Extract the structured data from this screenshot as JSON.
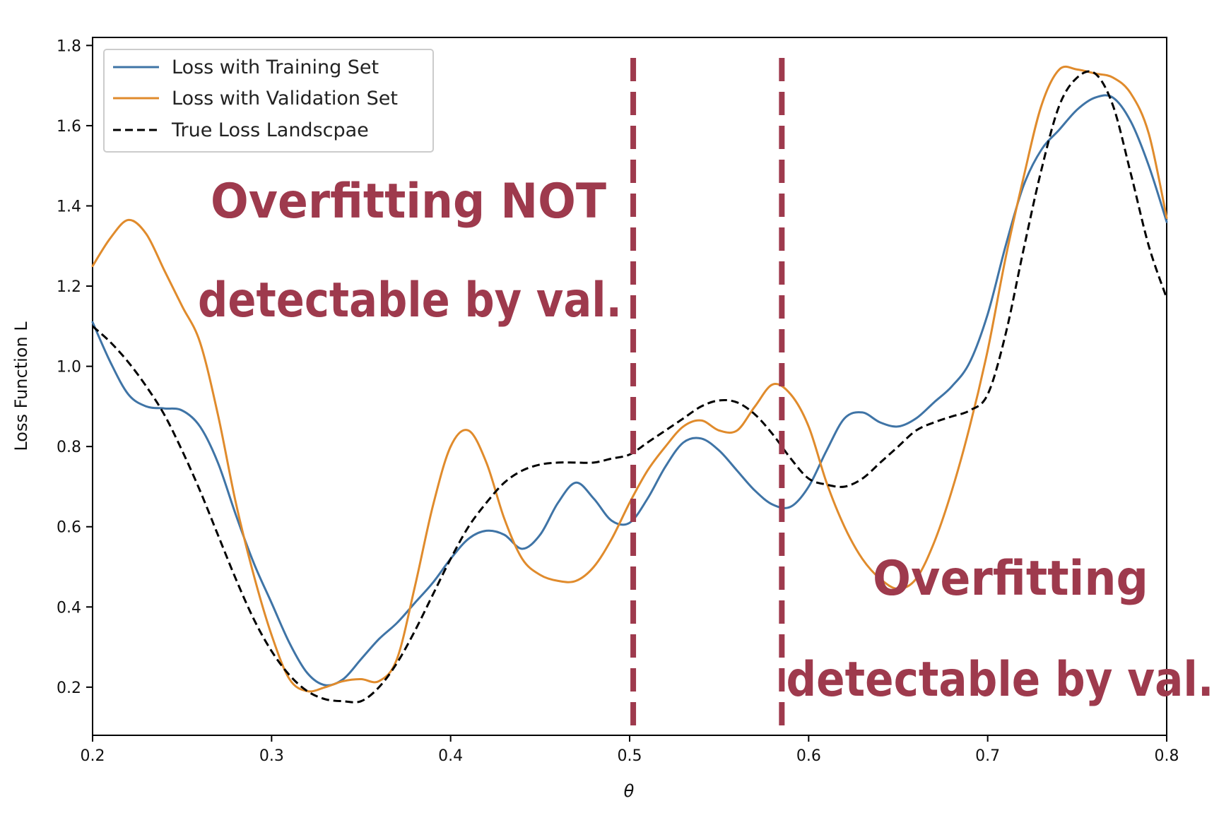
{
  "chart_data": {
    "type": "line",
    "xlabel": "θ",
    "ylabel": "Loss Function L",
    "xlim": [
      0.2,
      0.8
    ],
    "ylim": [
      0.08,
      1.82
    ],
    "xticks": [
      "0.2",
      "0.3",
      "0.4",
      "0.5",
      "0.6",
      "0.7",
      "0.8"
    ],
    "yticks": [
      "0.2",
      "0.4",
      "0.6",
      "0.8",
      "1.0",
      "1.2",
      "1.4",
      "1.6",
      "1.8"
    ],
    "grid": false,
    "legend_position": "top-left",
    "series": [
      {
        "name": "Loss with Training Set",
        "color": "#3f74a6",
        "style": "solid",
        "x": [
          0.2,
          0.21,
          0.22,
          0.23,
          0.24,
          0.25,
          0.26,
          0.27,
          0.28,
          0.29,
          0.3,
          0.31,
          0.32,
          0.33,
          0.34,
          0.35,
          0.36,
          0.37,
          0.38,
          0.39,
          0.4,
          0.41,
          0.42,
          0.43,
          0.44,
          0.45,
          0.46,
          0.47,
          0.48,
          0.49,
          0.5,
          0.51,
          0.52,
          0.53,
          0.54,
          0.55,
          0.56,
          0.57,
          0.58,
          0.59,
          0.6,
          0.61,
          0.62,
          0.63,
          0.64,
          0.65,
          0.66,
          0.67,
          0.68,
          0.69,
          0.7,
          0.71,
          0.72,
          0.73,
          0.74,
          0.75,
          0.76,
          0.77,
          0.78,
          0.79,
          0.8
        ],
        "y": [
          1.11,
          1.01,
          0.93,
          0.9,
          0.895,
          0.89,
          0.85,
          0.76,
          0.63,
          0.51,
          0.41,
          0.31,
          0.235,
          0.205,
          0.22,
          0.27,
          0.32,
          0.36,
          0.41,
          0.46,
          0.52,
          0.57,
          0.59,
          0.58,
          0.545,
          0.58,
          0.66,
          0.71,
          0.67,
          0.615,
          0.61,
          0.67,
          0.75,
          0.81,
          0.82,
          0.79,
          0.74,
          0.69,
          0.655,
          0.65,
          0.7,
          0.79,
          0.87,
          0.885,
          0.86,
          0.85,
          0.87,
          0.91,
          0.95,
          1.01,
          1.13,
          1.3,
          1.45,
          1.54,
          1.59,
          1.64,
          1.67,
          1.67,
          1.61,
          1.5,
          1.36
        ]
      },
      {
        "name": "Loss with Validation Set",
        "color": "#e08b2c",
        "style": "solid",
        "x": [
          0.2,
          0.21,
          0.22,
          0.23,
          0.24,
          0.25,
          0.26,
          0.27,
          0.28,
          0.29,
          0.3,
          0.31,
          0.32,
          0.33,
          0.34,
          0.35,
          0.36,
          0.37,
          0.38,
          0.39,
          0.4,
          0.41,
          0.42,
          0.43,
          0.44,
          0.45,
          0.46,
          0.47,
          0.48,
          0.49,
          0.5,
          0.51,
          0.52,
          0.53,
          0.54,
          0.55,
          0.56,
          0.57,
          0.58,
          0.59,
          0.6,
          0.61,
          0.62,
          0.63,
          0.64,
          0.65,
          0.66,
          0.67,
          0.68,
          0.69,
          0.7,
          0.71,
          0.72,
          0.73,
          0.74,
          0.75,
          0.76,
          0.77,
          0.78,
          0.79,
          0.8
        ],
        "y": [
          1.25,
          1.32,
          1.365,
          1.33,
          1.24,
          1.15,
          1.06,
          0.88,
          0.66,
          0.48,
          0.33,
          0.22,
          0.19,
          0.2,
          0.215,
          0.22,
          0.215,
          0.27,
          0.45,
          0.65,
          0.8,
          0.84,
          0.76,
          0.62,
          0.52,
          0.48,
          0.465,
          0.465,
          0.5,
          0.57,
          0.66,
          0.74,
          0.8,
          0.85,
          0.865,
          0.84,
          0.84,
          0.9,
          0.955,
          0.93,
          0.85,
          0.71,
          0.6,
          0.52,
          0.47,
          0.445,
          0.47,
          0.56,
          0.69,
          0.85,
          1.04,
          1.27,
          1.47,
          1.65,
          1.74,
          1.74,
          1.73,
          1.72,
          1.68,
          1.58,
          1.37
        ]
      },
      {
        "name": "True Loss Landscpae",
        "color": "#000000",
        "style": "dashed",
        "x": [
          0.2,
          0.21,
          0.22,
          0.23,
          0.24,
          0.25,
          0.26,
          0.27,
          0.28,
          0.29,
          0.3,
          0.31,
          0.32,
          0.33,
          0.34,
          0.35,
          0.36,
          0.37,
          0.38,
          0.39,
          0.4,
          0.41,
          0.42,
          0.43,
          0.44,
          0.45,
          0.46,
          0.47,
          0.48,
          0.49,
          0.5,
          0.51,
          0.52,
          0.53,
          0.54,
          0.55,
          0.56,
          0.57,
          0.58,
          0.59,
          0.6,
          0.61,
          0.62,
          0.63,
          0.64,
          0.65,
          0.66,
          0.67,
          0.68,
          0.69,
          0.7,
          0.71,
          0.72,
          0.73,
          0.74,
          0.75,
          0.76,
          0.77,
          0.78,
          0.79,
          0.8
        ],
        "y": [
          1.1,
          1.06,
          1.01,
          0.95,
          0.88,
          0.79,
          0.69,
          0.58,
          0.47,
          0.37,
          0.29,
          0.23,
          0.19,
          0.17,
          0.165,
          0.165,
          0.2,
          0.26,
          0.34,
          0.43,
          0.52,
          0.6,
          0.66,
          0.71,
          0.74,
          0.755,
          0.76,
          0.76,
          0.76,
          0.77,
          0.78,
          0.81,
          0.84,
          0.87,
          0.9,
          0.915,
          0.91,
          0.88,
          0.83,
          0.77,
          0.72,
          0.705,
          0.7,
          0.72,
          0.76,
          0.8,
          0.84,
          0.86,
          0.875,
          0.89,
          0.93,
          1.08,
          1.29,
          1.49,
          1.65,
          1.72,
          1.73,
          1.65,
          1.48,
          1.3,
          1.17
        ]
      }
    ],
    "vertical_lines": [
      {
        "x": 0.502,
        "color": "#9e3a4d",
        "style": "dashed"
      },
      {
        "x": 0.585,
        "color": "#9e3a4d",
        "style": "dashed"
      }
    ],
    "annotations": [
      {
        "line1": "Overfitting NOT",
        "line2": "detectable by val.",
        "color": "#9e3a4d"
      },
      {
        "line1": "Overfitting",
        "line2": "detectable by val.",
        "color": "#9e3a4d"
      }
    ]
  }
}
